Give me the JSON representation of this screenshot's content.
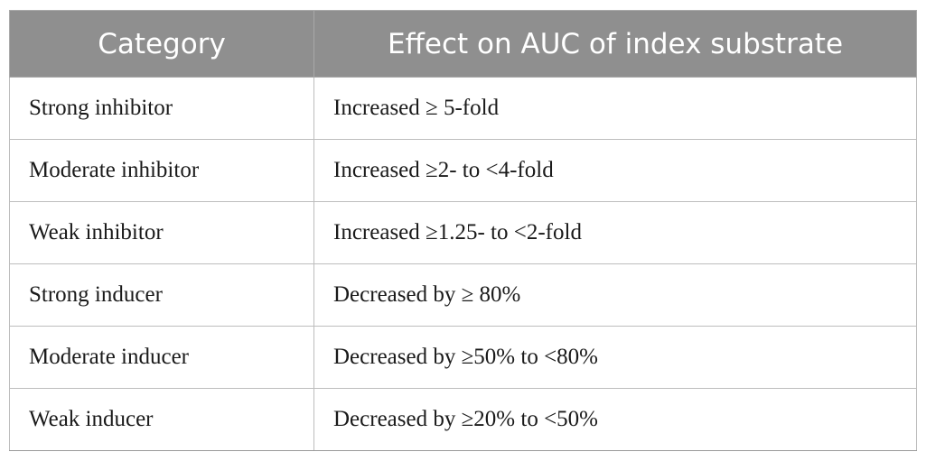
{
  "table": {
    "headers": [
      "Category",
      "Effect on AUC of index substrate"
    ],
    "rows": [
      [
        "Strong inhibitor",
        "Increased ≥ 5-fold"
      ],
      [
        "Moderate inhibitor",
        "Increased ≥2- to <4-fold"
      ],
      [
        "Weak inhibitor",
        "Increased ≥1.25- to <2-fold"
      ],
      [
        "Strong inducer",
        "Decreased by ≥ 80%"
      ],
      [
        "Moderate inducer",
        "Decreased by ≥50% to <80%"
      ],
      [
        "Weak inducer",
        "Decreased by ≥20% to <50%"
      ]
    ]
  },
  "colors": {
    "header_bg": "#8f8f8f",
    "header_text": "#ffffff",
    "border": "#bdbdbd"
  }
}
